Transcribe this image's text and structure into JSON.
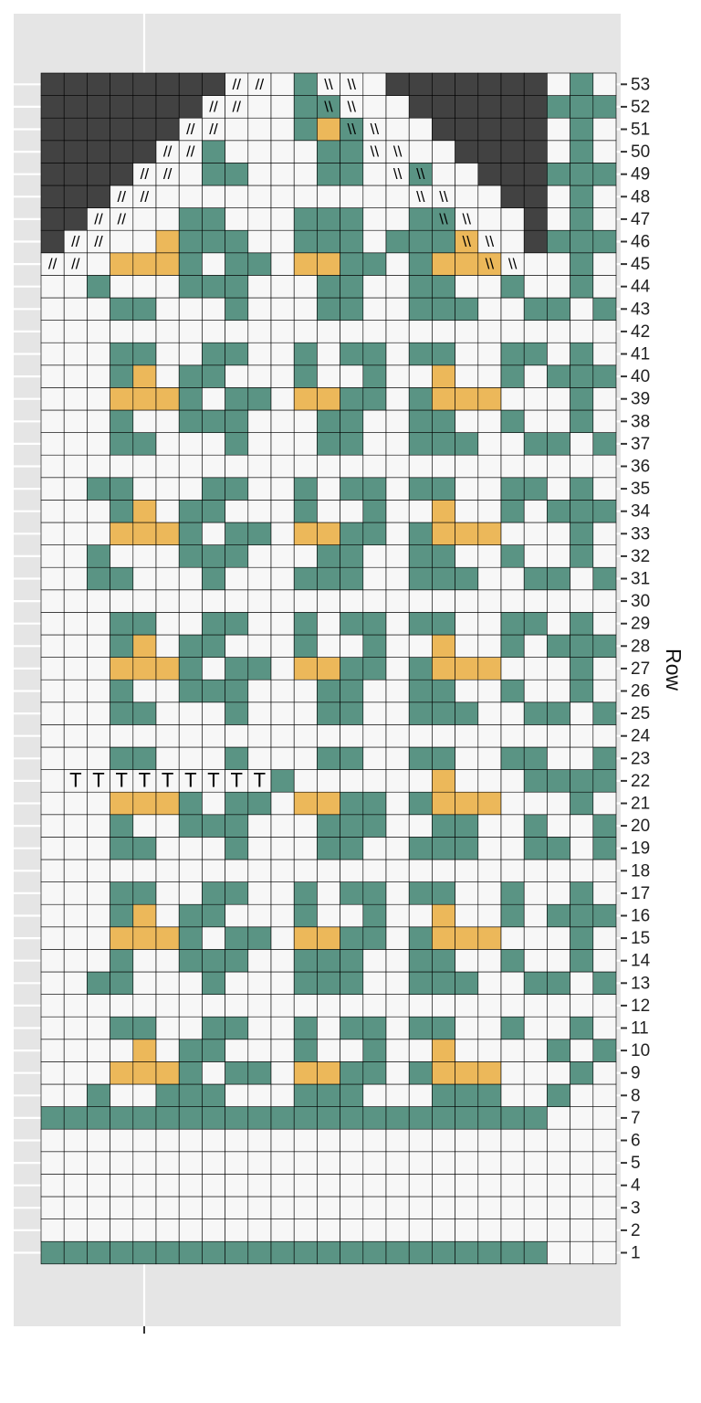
{
  "chart_data": {
    "type": "heatmap",
    "title": "",
    "xlabel": "",
    "ylabel": "Row",
    "row_range": [
      1,
      53
    ],
    "columns": 25,
    "legend": "none",
    "colors": {
      "background": "#e5e5e5",
      "white": "#f7f7f7",
      "green": "#5a9484",
      "gold": "#ecb85a",
      "dark": "#424242",
      "gridline": "#ffffff",
      "cell_border": "#000000"
    },
    "row_labels": [
      "1",
      "2",
      "3",
      "4",
      "5",
      "6",
      "7",
      "8",
      "9",
      "10",
      "11",
      "12",
      "13",
      "14",
      "15",
      "16",
      "17",
      "18",
      "19",
      "20",
      "21",
      "22",
      "23",
      "24",
      "25",
      "26",
      "27",
      "28",
      "29",
      "30",
      "31",
      "32",
      "33",
      "34",
      "35",
      "36",
      "37",
      "38",
      "39",
      "40",
      "41",
      "42",
      "43",
      "44",
      "45",
      "46",
      "47",
      "48",
      "49",
      "50",
      "51",
      "52",
      "53"
    ],
    "legend_key": "W = background white, G = green stitch, Y = gold stitch, D = dark (not knitted); grid strings run from column 1 (left) to column 25 (right)",
    "rows": [
      "GGGGGGGGGGGGGGGGGGGGGGWWW",
      "WWWWWWWWWWWWWWWWWWWWWWWWW",
      "WWWWWWWWWWWWWWWWWWWWWWWWW",
      "WWWWWWWWWWWWWWWWWWWWWWWWW",
      "WWWWWWWWWWWWWWWWWWWWWWWWW",
      "WWWWWWWWWWWWWWWWWWWWWWWWW",
      "GGGGGGGGGGGGGGGGGGGGGGWWW",
      "WWGWWGGGWWWGGGWWWGGGWWGWW",
      "WWWYYYGWGGWYYGGWGYYYWWWGW",
      "WWWWYWGGWWWGWWGWWYWWWWGWG",
      "WWWGGWWGGWWGWGGWGGWWGWWGW",
      "WWWWWWWWWWWWWWWWWWWWWWWWW",
      "WWGGWWWGWWWGGGWWGGGWWGGWG",
      "WWWGWWGGGWWGGGWWGGWWGWWGW",
      "WWWYYYGWGGWYYGGWGYYYWWWGW",
      "WWWGYWGGWWWGWWGWWYWWGWGGG",
      "WWWGGWWGGWWGWGGWGGWWGWWGW",
      "WWWWWWWWWWWWWWWWWWWWWWWWW",
      "WWWGGWWWGWWWGGWWGGGWWGGWG",
      "WWWGWWGGGWWWGGGWWGGWWGWWG",
      "WWWYYYGWGGWYYGGWGYYYWWWGW",
      "WWWWWWWWWWGWWWWWWYWWWGGGG",
      "WWWGGWWWGWWWGGWWGGWWGGWWG",
      "WWWWWWWWWWWWWWWWWWWWWWWWW",
      "WWWGGWWWGWWWGGWWGGGWWGGWG",
      "WWWGWWGGGWWWGGWWGGWWGWWGW",
      "WWWYYYGWGGWYYGGWGYYYWWWGW",
      "WWWGYWGGWWWGWWGWWYWWGWGGG",
      "WWWGGWWGGWWGWGGWGGWWGGWGW",
      "WWWWWWWWWWWWWWWWWWWWWWWWW",
      "WWGGWWWGWWWGGGWWGGGWWGGWG",
      "WWGWWWGGGWWWGGWWGGWWGWWGW",
      "WWWYYYGWGGWYYGGWGYYYWWWGW",
      "WWWGYWGGWWWGWWGWWYWWGWGGG",
      "WWGGWWWGGWWGWGGWGGWWGGWGW",
      "WWWWWWWWWWWWWWWWWWWWWWWWW",
      "WWWGGWWWGWWWGGWWGGGWWGGWG",
      "WWWGWWGGGWWWGGWWGGWWGWWGW",
      "WWWYYYGWGGWYYGGWGYYYWWWGW",
      "WWWGYWGGWWWGWWGWWYWWGWGGG",
      "WWWGGWWGGWWGWGGWGGWWGGWGW",
      "WWWWWWWWWWWWWWWWWWWWWWWWW",
      "WWWGGWWWGWWWGGWWGGGWWGGWG",
      "WWGWWWGGGWWWGGWWGGWWGWWGW",
      "WWWYYYGWGGWYYGGWGYYYWWWGW",
      "DWWWWYGGGWWGGGWGGGYWWDGGG",
      "DDWWWWGGWWWGGGWWGGWWWDWGW",
      "DDDWWWWWWWWWWWWWWWWWDDWGW",
      "DDDDWWWGGWWWGGWWGWWDDDGGG",
      "DDDDDWWGWWWWGGWWWWDDDDWGW",
      "DDDDDDWWWWWGYGWWWDDDDDWGW",
      "DDDDDDDWWWWGGWWWDDDDDDGGG",
      "DDDDDDDDWWWGWWWDDDDDDDWGW"
    ],
    "stitch_symbols": [
      {
        "row": 22,
        "glyph": "T",
        "columns": [
          2,
          3,
          4,
          5,
          6,
          7,
          8,
          9,
          10
        ]
      },
      {
        "row": 45,
        "glyph": "//",
        "columns": [
          1,
          2
        ]
      },
      {
        "row": 45,
        "glyph": "\\\\",
        "columns": [
          20,
          21
        ]
      },
      {
        "row": 46,
        "glyph": "//",
        "columns": [
          2,
          3
        ]
      },
      {
        "row": 46,
        "glyph": "\\\\",
        "columns": [
          19,
          20
        ]
      },
      {
        "row": 47,
        "glyph": "//",
        "columns": [
          3,
          4
        ]
      },
      {
        "row": 47,
        "glyph": "\\\\",
        "columns": [
          18,
          19
        ]
      },
      {
        "row": 48,
        "glyph": "//",
        "columns": [
          4,
          5
        ]
      },
      {
        "row": 48,
        "glyph": "\\\\",
        "columns": [
          17,
          18
        ]
      },
      {
        "row": 49,
        "glyph": "//",
        "columns": [
          5,
          6
        ]
      },
      {
        "row": 49,
        "glyph": "\\\\",
        "columns": [
          16,
          17
        ]
      },
      {
        "row": 50,
        "glyph": "//",
        "columns": [
          6,
          7
        ]
      },
      {
        "row": 50,
        "glyph": "\\\\",
        "columns": [
          15,
          16
        ]
      },
      {
        "row": 51,
        "glyph": "//",
        "columns": [
          7,
          8
        ]
      },
      {
        "row": 51,
        "glyph": "\\\\",
        "columns": [
          14,
          15
        ]
      },
      {
        "row": 52,
        "glyph": "//",
        "columns": [
          8,
          9
        ]
      },
      {
        "row": 52,
        "glyph": "\\\\",
        "columns": [
          13,
          14
        ]
      },
      {
        "row": 53,
        "glyph": "//",
        "columns": [
          9,
          10
        ]
      },
      {
        "row": 53,
        "glyph": "\\\\",
        "columns": [
          13,
          14
        ]
      }
    ]
  }
}
